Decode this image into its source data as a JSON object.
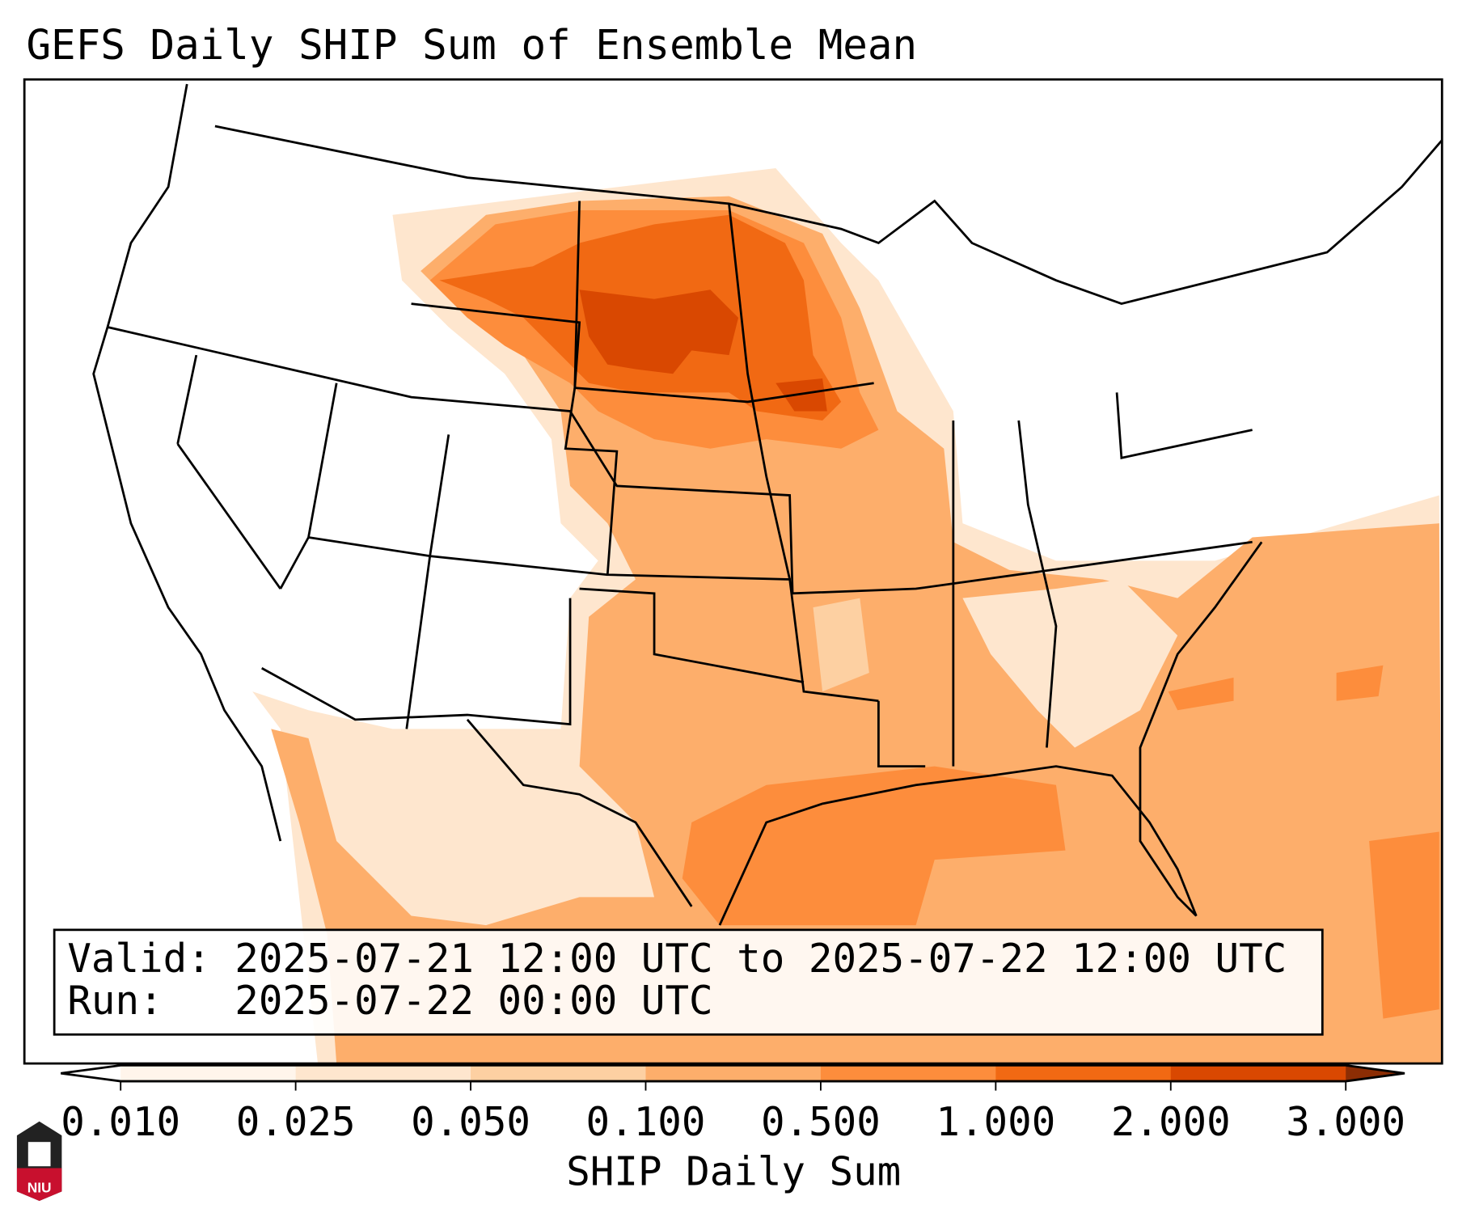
{
  "title": "GEFS Daily SHIP Sum of Ensemble Mean",
  "info_box": {
    "valid_line": "Valid: 2025-07-21 12:00 UTC to 2025-07-22 12:00 UTC",
    "run_line": "Run:   2025-07-22 00:00 UTC"
  },
  "colorbar": {
    "label": "SHIP Daily Sum",
    "ticks": [
      "0.010",
      "0.025",
      "0.050",
      "0.100",
      "0.500",
      "1.000",
      "2.000",
      "3.000"
    ],
    "colors": [
      "#fff5eb",
      "#fee6ce",
      "#fdd0a2",
      "#fdae6b",
      "#fd8d3c",
      "#f16913",
      "#d94801",
      "#8c2d04"
    ],
    "extend": "both"
  },
  "logo": {
    "text": "NIU",
    "color": "#c8102e"
  }
}
